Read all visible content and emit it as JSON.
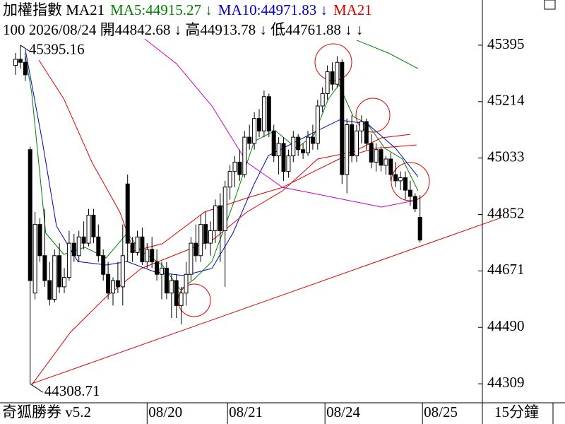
{
  "chart_data": {
    "type": "candlestick",
    "title": "加權指數 MA21",
    "info": "100 2026/08/24 開44842.68 ↓ 高44913.78 ↓ 低44761.88 ↓ ↓",
    "footer": "奇狐勝券 v5.2",
    "period": "15分鐘",
    "up_color": "#ffffff",
    "down_color": "#000000",
    "open": [
      45330,
      45350,
      45340,
      45060,
      44600,
      44820,
      44720,
      44640,
      44580,
      44720,
      44620,
      44650,
      44760,
      44720,
      44780,
      44760,
      44850,
      44780,
      44720,
      44660,
      44600,
      44640,
      44620,
      44950,
      44760,
      44730,
      44780,
      44700,
      44740,
      44700,
      44660,
      44680,
      44600,
      44640,
      44560,
      44600,
      44660,
      44760,
      44720,
      44820,
      44760,
      44800,
      44880,
      44800,
      44940,
      44990,
      45020,
      44980,
      45100,
      45080,
      45160,
      45120,
      45230,
      45120,
      45040,
      45080,
      44990,
      45040,
      45100,
      45060,
      45050,
      45100,
      45080,
      45200,
      45240,
      45310,
      45270,
      45340,
      44980,
      45140,
      45040,
      45120,
      45150,
      45080,
      45020,
      45060,
      45010,
      45030,
      44980,
      44960,
      44970,
      44930,
      44910,
      44842.68
    ],
    "high": [
      45370,
      45395.16,
      45360,
      45070,
      44860,
      44840,
      44870,
      44700,
      44740,
      44760,
      44680,
      44800,
      44790,
      44800,
      44830,
      44870,
      44870,
      44820,
      44740,
      44700,
      44650,
      44700,
      44820,
      44980,
      44780,
      44800,
      44810,
      44760,
      44780,
      44740,
      44700,
      44700,
      44660,
      44660,
      44620,
      44700,
      44780,
      44820,
      44850,
      44860,
      44830,
      44900,
      44920,
      44960,
      45010,
      45040,
      45060,
      45120,
      45140,
      45180,
      45190,
      45250,
      45240,
      45140,
      45100,
      45100,
      45060,
      45120,
      45110,
      45080,
      45120,
      45140,
      45220,
      45260,
      45330,
      45340,
      45360,
      45350,
      45160,
      45170,
      45140,
      45170,
      45160,
      45110,
      45080,
      45070,
      45040,
      45050,
      45020,
      44990,
      44990,
      44960,
      44920,
      44913.78
    ],
    "low": [
      45300,
      45320,
      45280,
      44308.71,
      44580,
      44700,
      44620,
      44560,
      44570,
      44600,
      44600,
      44640,
      44700,
      44700,
      44740,
      44750,
      44760,
      44700,
      44640,
      44580,
      44560,
      44600,
      44560,
      44700,
      44700,
      44720,
      44690,
      44680,
      44680,
      44640,
      44580,
      44580,
      44520,
      44520,
      44500,
      44560,
      44640,
      44700,
      44700,
      44740,
      44720,
      44760,
      44700,
      44620,
      44900,
      44940,
      44960,
      44970,
      45060,
      45060,
      45100,
      45100,
      45100,
      45020,
      44980,
      44960,
      44970,
      45020,
      45040,
      45030,
      45040,
      45060,
      45060,
      45180,
      45220,
      45250,
      45260,
      44950,
      44920,
      45020,
      45020,
      45080,
      45060,
      45000,
      44990,
      44990,
      44980,
      44960,
      44940,
      44930,
      44900,
      44880,
      44860,
      44761.88
    ],
    "close": [
      45350,
      45340,
      45300,
      44640,
      44820,
      44720,
      44640,
      44580,
      44720,
      44620,
      44650,
      44760,
      44720,
      44780,
      44760,
      44850,
      44780,
      44720,
      44660,
      44600,
      44640,
      44620,
      44720,
      44760,
      44730,
      44780,
      44700,
      44740,
      44700,
      44660,
      44680,
      44600,
      44640,
      44560,
      44600,
      44660,
      44760,
      44720,
      44820,
      44760,
      44800,
      44880,
      44800,
      44940,
      44990,
      45020,
      44980,
      45100,
      45080,
      45160,
      45120,
      45230,
      45120,
      45040,
      45080,
      44990,
      45040,
      45100,
      45060,
      45050,
      45100,
      45080,
      45200,
      45240,
      45310,
      45270,
      45340,
      44980,
      45140,
      45040,
      45120,
      45150,
      45080,
      45020,
      45060,
      45010,
      45030,
      44980,
      44960,
      44970,
      44930,
      44910,
      44870,
      44770
    ],
    "series": [
      {
        "name": "MA5:44915.27 ↓",
        "color": "#008000",
        "x": [
          1.9,
          3.3,
          6.2,
          9.9,
          14.2,
          18.6,
          22.9,
          25.8,
          30.1,
          33.8,
          36.7,
          40.3,
          44.6,
          49,
          53.3,
          57.7,
          61.3,
          64.2,
          66.4,
          69.3,
          72.2,
          75.8,
          79.4,
          82.6
        ],
        "values": [
          45370,
          45245,
          44792,
          44724,
          44747,
          44713,
          44792,
          44735,
          44690,
          44611,
          44645,
          44701,
          44883,
          45087,
          45121,
          45064,
          45109,
          45223,
          45268,
          45166,
          45143,
          45064,
          45030,
          44928
        ]
      },
      {
        "name": "MA10:44971.83 ↓",
        "color": "#0000cc",
        "x": [
          2,
          5.5,
          8.4,
          12.8,
          18.6,
          22.9,
          28.7,
          34.5,
          40.3,
          44.6,
          49,
          51.9,
          57.7,
          62,
          66.4,
          72.2,
          78,
          82.6
        ],
        "values": [
          45381,
          45087,
          44815,
          44701,
          44690,
          44701,
          44667,
          44656,
          44679,
          44792,
          44951,
          45041,
          45087,
          45121,
          45155,
          45143,
          45064,
          44973
        ]
      },
      {
        "name": "MA21",
        "color": "#e00000",
        "x": [
          4.8,
          9.9,
          15.7,
          21.4,
          24.3,
          30.1,
          38.8,
          47.5,
          54.8,
          60.6,
          66.4,
          73.6,
          82.3
        ],
        "values": [
          45347,
          45223,
          45019,
          44860,
          44735,
          44758,
          44860,
          44905,
          44939,
          44985,
          45030,
          45064,
          45075
        ]
      },
      {
        "color": "#e00000",
        "x": [
          3.3,
          11.3,
          18.6,
          25.8,
          33,
          40.3,
          47.5,
          54.8,
          62,
          69.3,
          75.1,
          81
        ],
        "values": [
          44305,
          44475,
          44588,
          44679,
          44724,
          44769,
          44860,
          44928,
          45030,
          45053,
          45098,
          45109
        ]
      },
      {
        "color": "#cc00cc",
        "x": [
          26.5,
          33,
          40.3,
          47.5,
          54.8,
          62,
          69.3,
          75.1,
          82.3
        ],
        "values": [
          45415,
          45336,
          45200,
          45019,
          44939,
          44917,
          44894,
          44876,
          44898
        ]
      },
      {
        "color": "#008000",
        "x": [
          70,
          76.5,
          82.6
        ],
        "values": [
          45411,
          45370,
          45320
        ]
      }
    ],
    "trendline": {
      "color": "#e00000",
      "x": [
        3.3,
        99.7
      ],
      "values": [
        44309,
        44842
      ]
    },
    "ylim": [
      44248,
      45540
    ],
    "yticks": [
      45395,
      45214,
      45033,
      44852,
      44671,
      44490,
      44309
    ],
    "xticks": [
      {
        "value": 27,
        "label": "08/20"
      },
      {
        "value": 43.5,
        "label": "08/21"
      },
      {
        "value": 63.5,
        "label": "08/24"
      },
      {
        "value": 83.5,
        "label": "08/25"
      }
    ]
  }
}
